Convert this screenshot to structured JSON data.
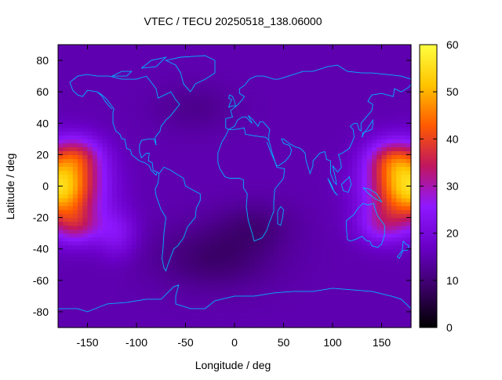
{
  "chart_data": {
    "type": "heatmap",
    "title": "VTEC / TECU 20250518_138.06000",
    "xlabel": "Longitude / deg",
    "ylabel": "Latitude / deg",
    "xlim": [
      -180,
      180
    ],
    "ylim": [
      -90,
      90
    ],
    "x_ticks": [
      -150,
      -100,
      -50,
      0,
      50,
      100,
      150
    ],
    "y_ticks": [
      -80,
      -60,
      -40,
      -20,
      0,
      20,
      40,
      60,
      80
    ],
    "colorbar": {
      "range": [
        0,
        60
      ],
      "ticks": [
        0,
        10,
        20,
        30,
        40,
        50,
        60
      ],
      "palette": [
        "#000000",
        "#3a0066",
        "#6a00c8",
        "#8f18ff",
        "#c0165f",
        "#ff5a00",
        "#ffc400",
        "#ffff40"
      ]
    },
    "field_model": {
      "background": 15,
      "blobs": [
        {
          "lon": -180,
          "lat": 0,
          "amp": 40,
          "sigma_lon": 40,
          "sigma_lat": 22
        },
        {
          "lon": 180,
          "lat": 0,
          "amp": 40,
          "sigma_lon": 40,
          "sigma_lat": 22
        },
        {
          "lon": -160,
          "lat": 20,
          "amp": 12,
          "sigma_lon": 25,
          "sigma_lat": 12
        },
        {
          "lon": -160,
          "lat": -25,
          "amp": 12,
          "sigma_lon": 25,
          "sigma_lat": 12
        },
        {
          "lon": 160,
          "lat": 18,
          "amp": 12,
          "sigma_lon": 25,
          "sigma_lat": 12
        },
        {
          "lon": 150,
          "lat": -25,
          "amp": 10,
          "sigma_lon": 25,
          "sigma_lat": 12
        },
        {
          "lon": -120,
          "lat": -30,
          "amp": 8,
          "sigma_lon": 20,
          "sigma_lat": 15
        },
        {
          "lon": -20,
          "lat": -45,
          "amp": -6,
          "sigma_lon": 60,
          "sigma_lat": 20
        },
        {
          "lon": 20,
          "lat": -25,
          "amp": -4,
          "sigma_lon": 40,
          "sigma_lat": 15
        },
        {
          "lon": -40,
          "lat": 50,
          "amp": -3,
          "sigma_lon": 40,
          "sigma_lat": 15
        }
      ]
    },
    "coastline_color": "#00b4ff",
    "coastlines": [
      [
        [
          -168,
          66
        ],
        [
          -160,
          70
        ],
        [
          -150,
          71
        ],
        [
          -140,
          70
        ],
        [
          -128,
          70
        ],
        [
          -115,
          68
        ],
        [
          -100,
          68
        ],
        [
          -90,
          70
        ],
        [
          -85,
          66
        ],
        [
          -80,
          62
        ],
        [
          -78,
          56
        ],
        [
          -65,
          60
        ],
        [
          -60,
          55
        ],
        [
          -56,
          52
        ],
        [
          -65,
          45
        ],
        [
          -70,
          42
        ],
        [
          -75,
          38
        ],
        [
          -76,
          35
        ],
        [
          -81,
          31
        ],
        [
          -80,
          26
        ],
        [
          -82,
          30
        ],
        [
          -88,
          30
        ],
        [
          -95,
          29
        ],
        [
          -97,
          26
        ],
        [
          -97,
          22
        ],
        [
          -95,
          18
        ],
        [
          -90,
          21
        ],
        [
          -87,
          21
        ],
        [
          -88,
          16
        ],
        [
          -84,
          15
        ],
        [
          -83,
          10
        ],
        [
          -79,
          9
        ],
        [
          -80,
          7
        ],
        [
          -85,
          10
        ],
        [
          -87,
          13
        ],
        [
          -92,
          15
        ],
        [
          -97,
          16
        ],
        [
          -105,
          20
        ],
        [
          -106,
          23
        ],
        [
          -110,
          24
        ],
        [
          -112,
          30
        ],
        [
          -115,
          30
        ],
        [
          -117,
          33
        ],
        [
          -121,
          35
        ],
        [
          -124,
          40
        ],
        [
          -124,
          47
        ],
        [
          -123,
          49
        ],
        [
          -130,
          55
        ],
        [
          -135,
          58
        ],
        [
          -140,
          60
        ],
        [
          -150,
          61
        ],
        [
          -155,
          57
        ],
        [
          -160,
          58
        ],
        [
          -165,
          61
        ],
        [
          -168,
          66
        ]
      ],
      [
        [
          -79,
          9
        ],
        [
          -77,
          8
        ],
        [
          -72,
          12
        ],
        [
          -65,
          10
        ],
        [
          -60,
          8
        ],
        [
          -52,
          5
        ],
        [
          -50,
          0
        ],
        [
          -44,
          -2
        ],
        [
          -35,
          -5
        ],
        [
          -35,
          -9
        ],
        [
          -39,
          -14
        ],
        [
          -40,
          -20
        ],
        [
          -44,
          -23
        ],
        [
          -48,
          -26
        ],
        [
          -52,
          -33
        ],
        [
          -58,
          -38
        ],
        [
          -62,
          -40
        ],
        [
          -65,
          -45
        ],
        [
          -68,
          -50
        ],
        [
          -70,
          -54
        ],
        [
          -72,
          -52
        ],
        [
          -74,
          -46
        ],
        [
          -73,
          -40
        ],
        [
          -72,
          -30
        ],
        [
          -70,
          -20
        ],
        [
          -75,
          -15
        ],
        [
          -80,
          -6
        ],
        [
          -81,
          -2
        ],
        [
          -78,
          2
        ],
        [
          -77,
          8
        ],
        [
          -79,
          9
        ]
      ],
      [
        [
          -45,
          60
        ],
        [
          -52,
          65
        ],
        [
          -55,
          72
        ],
        [
          -60,
          77
        ],
        [
          -70,
          80
        ],
        [
          -55,
          82
        ],
        [
          -30,
          83
        ],
        [
          -20,
          80
        ],
        [
          -20,
          72
        ],
        [
          -30,
          68
        ],
        [
          -40,
          65
        ],
        [
          -45,
          60
        ]
      ],
      [
        [
          -17,
          15
        ],
        [
          -17,
          21
        ],
        [
          -13,
          28
        ],
        [
          -9,
          32
        ],
        [
          -6,
          36
        ],
        [
          0,
          36
        ],
        [
          10,
          37
        ],
        [
          11,
          33
        ],
        [
          20,
          32
        ],
        [
          32,
          31
        ],
        [
          35,
          29
        ],
        [
          38,
          22
        ],
        [
          43,
          12
        ],
        [
          51,
          11
        ],
        [
          50,
          5
        ],
        [
          41,
          -2
        ],
        [
          40,
          -10
        ],
        [
          40,
          -16
        ],
        [
          35,
          -24
        ],
        [
          33,
          -28
        ],
        [
          28,
          -33
        ],
        [
          20,
          -35
        ],
        [
          18,
          -30
        ],
        [
          14,
          -22
        ],
        [
          12,
          -13
        ],
        [
          13,
          -5
        ],
        [
          9,
          -1
        ],
        [
          9,
          4
        ],
        [
          5,
          5
        ],
        [
          -5,
          5
        ],
        [
          -10,
          6
        ],
        [
          -15,
          11
        ],
        [
          -17,
          15
        ]
      ],
      [
        [
          -9,
          37
        ],
        [
          -9,
          43
        ],
        [
          -2,
          44
        ],
        [
          -4,
          48
        ],
        [
          2,
          51
        ],
        [
          5,
          53
        ],
        [
          8,
          55
        ],
        [
          10,
          57
        ],
        [
          5,
          59
        ],
        [
          5,
          62
        ],
        [
          10,
          64
        ],
        [
          15,
          68
        ],
        [
          22,
          70
        ],
        [
          30,
          70
        ],
        [
          40,
          68
        ],
        [
          45,
          68
        ],
        [
          55,
          70
        ],
        [
          70,
          73
        ],
        [
          80,
          73
        ],
        [
          95,
          76
        ],
        [
          105,
          77
        ],
        [
          115,
          73
        ],
        [
          130,
          72
        ],
        [
          140,
          72
        ],
        [
          155,
          71
        ],
        [
          170,
          70
        ],
        [
          180,
          68
        ]
      ],
      [
        [
          -9,
          37
        ],
        [
          -6,
          36
        ],
        [
          0,
          38
        ],
        [
          3,
          42
        ],
        [
          8,
          44
        ],
        [
          12,
          44
        ],
        [
          16,
          41
        ],
        [
          18,
          40
        ],
        [
          14,
          45
        ],
        [
          19,
          42
        ],
        [
          24,
          38
        ],
        [
          26,
          41
        ],
        [
          29,
          41
        ],
        [
          36,
          36
        ],
        [
          35,
          33
        ],
        [
          35,
          29
        ]
      ],
      [
        [
          33,
          28
        ],
        [
          38,
          20
        ],
        [
          43,
          13
        ],
        [
          45,
          13
        ],
        [
          52,
          16
        ],
        [
          57,
          20
        ],
        [
          58,
          23
        ],
        [
          56,
          26
        ],
        [
          50,
          27
        ],
        [
          48,
          30
        ],
        [
          50,
          30
        ],
        [
          56,
          27
        ],
        [
          62,
          25
        ],
        [
          67,
          24
        ],
        [
          72,
          21
        ],
        [
          73,
          16
        ],
        [
          77,
          8
        ],
        [
          80,
          13
        ],
        [
          80,
          16
        ],
        [
          87,
          21
        ],
        [
          92,
          22
        ],
        [
          94,
          17
        ],
        [
          98,
          16
        ],
        [
          98,
          8
        ],
        [
          101,
          3
        ],
        [
          104,
          1
        ],
        [
          103,
          5
        ],
        [
          100,
          13
        ],
        [
          105,
          9
        ],
        [
          109,
          12
        ],
        [
          108,
          16
        ],
        [
          106,
          20
        ],
        [
          110,
          21
        ],
        [
          117,
          24
        ],
        [
          120,
          28
        ],
        [
          122,
          31
        ],
        [
          121,
          36
        ],
        [
          118,
          38
        ],
        [
          122,
          40
        ],
        [
          125,
          40
        ],
        [
          127,
          36
        ],
        [
          129,
          35
        ],
        [
          129,
          40
        ],
        [
          133,
          43
        ],
        [
          140,
          48
        ],
        [
          141,
          52
        ],
        [
          136,
          54
        ],
        [
          140,
          58
        ],
        [
          150,
          59
        ],
        [
          156,
          58
        ],
        [
          162,
          57
        ],
        [
          163,
          62
        ],
        [
          170,
          60
        ],
        [
          178,
          63
        ],
        [
          180,
          65
        ]
      ],
      [
        [
          -6,
          50
        ],
        [
          -3,
          51
        ],
        [
          1,
          51
        ],
        [
          0,
          54
        ],
        [
          -2,
          57
        ],
        [
          -5,
          58
        ],
        [
          -6,
          56
        ],
        [
          -3,
          55
        ],
        [
          -5,
          52
        ],
        [
          -6,
          50
        ]
      ],
      [
        [
          130,
          31
        ],
        [
          131,
          34
        ],
        [
          136,
          35
        ],
        [
          140,
          36
        ],
        [
          141,
          39
        ],
        [
          141,
          42
        ],
        [
          139,
          40
        ],
        [
          136,
          37
        ],
        [
          132,
          34
        ],
        [
          130,
          31
        ]
      ],
      [
        [
          114,
          -22
        ],
        [
          114,
          -26
        ],
        [
          115,
          -34
        ],
        [
          118,
          -35
        ],
        [
          123,
          -34
        ],
        [
          130,
          -32
        ],
        [
          135,
          -35
        ],
        [
          138,
          -35
        ],
        [
          140,
          -38
        ],
        [
          146,
          -39
        ],
        [
          150,
          -37
        ],
        [
          153,
          -31
        ],
        [
          153,
          -25
        ],
        [
          146,
          -19
        ],
        [
          143,
          -14
        ],
        [
          142,
          -11
        ],
        [
          136,
          -12
        ],
        [
          131,
          -11
        ],
        [
          126,
          -14
        ],
        [
          122,
          -18
        ],
        [
          114,
          -22
        ]
      ],
      [
        [
          95,
          5
        ],
        [
          100,
          -2
        ],
        [
          105,
          -6
        ],
        [
          102,
          -4
        ],
        [
          98,
          2
        ],
        [
          95,
          5
        ]
      ],
      [
        [
          109,
          1
        ],
        [
          111,
          -3
        ],
        [
          116,
          -4
        ],
        [
          119,
          1
        ],
        [
          117,
          6
        ],
        [
          114,
          4
        ],
        [
          109,
          1
        ]
      ],
      [
        [
          131,
          -1
        ],
        [
          138,
          -2
        ],
        [
          145,
          -5
        ],
        [
          150,
          -10
        ],
        [
          143,
          -8
        ],
        [
          137,
          -5
        ],
        [
          131,
          -1
        ]
      ],
      [
        [
          44,
          -16
        ],
        [
          47,
          -13
        ],
        [
          50,
          -15
        ],
        [
          49,
          -20
        ],
        [
          47,
          -25
        ],
        [
          44,
          -24
        ],
        [
          44,
          -16
        ]
      ],
      [
        [
          172,
          -35
        ],
        [
          175,
          -37
        ],
        [
          178,
          -38
        ],
        [
          176,
          -41
        ],
        [
          172,
          -41
        ],
        [
          168,
          -46
        ],
        [
          166,
          -45
        ],
        [
          171,
          -41
        ],
        [
          172,
          -35
        ]
      ],
      [
        [
          -180,
          -78
        ],
        [
          -160,
          -78
        ],
        [
          -150,
          -80
        ],
        [
          -130,
          -75
        ],
        [
          -110,
          -74
        ],
        [
          -90,
          -72
        ],
        [
          -75,
          -72
        ],
        [
          -62,
          -64
        ],
        [
          -57,
          -63
        ],
        [
          -60,
          -70
        ],
        [
          -60,
          -75
        ],
        [
          -45,
          -78
        ],
        [
          -30,
          -78
        ],
        [
          -20,
          -73
        ],
        [
          0,
          -70
        ],
        [
          20,
          -70
        ],
        [
          40,
          -68
        ],
        [
          60,
          -67
        ],
        [
          80,
          -67
        ],
        [
          100,
          -65
        ],
        [
          120,
          -66
        ],
        [
          140,
          -67
        ],
        [
          160,
          -70
        ],
        [
          170,
          -72
        ],
        [
          180,
          -78
        ]
      ],
      [
        [
          -140,
          60
        ],
        [
          -135,
          57
        ],
        [
          -132,
          54
        ],
        [
          -128,
          51
        ],
        [
          -125,
          49
        ]
      ],
      [
        [
          -95,
          75
        ],
        [
          -85,
          80
        ],
        [
          -70,
          82
        ],
        [
          -80,
          76
        ],
        [
          -95,
          75
        ]
      ],
      [
        [
          -125,
          70
        ],
        [
          -115,
          73
        ],
        [
          -105,
          73
        ],
        [
          -110,
          70
        ],
        [
          -125,
          70
        ]
      ]
    ]
  }
}
